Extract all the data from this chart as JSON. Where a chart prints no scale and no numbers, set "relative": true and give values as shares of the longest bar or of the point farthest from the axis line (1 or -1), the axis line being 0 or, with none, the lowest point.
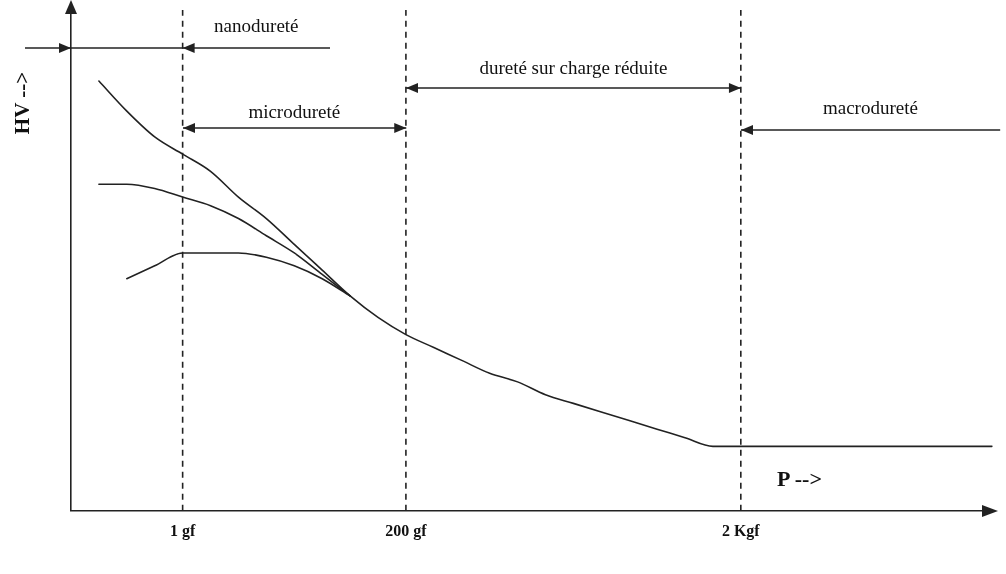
{
  "chart_data": {
    "type": "line",
    "relative": true,
    "ylabel": "HV -->",
    "xlabel": "P -->",
    "legend": false,
    "grid": false,
    "marker": "none",
    "categories": [
      null,
      null,
      null,
      null,
      "1 gf",
      null,
      null,
      null,
      null,
      null,
      null,
      null,
      "200 gf",
      null,
      null,
      null,
      null,
      null,
      null,
      null,
      null,
      null,
      null,
      null,
      "2 Kgf",
      null,
      null,
      null,
      null,
      null,
      null,
      null,
      null,
      null
    ],
    "series": [
      {
        "color": "#222222",
        "values": [
          null,
          1,
          0.93,
          0.87,
          0.83,
          0.79,
          0.73,
          0.68,
          0.62,
          0.56,
          0.5,
          0.45,
          0.41,
          0.38,
          0.35,
          0.32,
          0.3,
          0.27,
          0.25,
          0.23,
          0.21,
          0.19,
          0.17,
          0.15,
          0.15,
          0.15,
          0.15,
          0.15,
          0.15,
          0.15,
          0.15,
          0.15,
          0.15,
          0.15
        ]
      },
      {
        "color": "#222222",
        "values": [
          null,
          0.76,
          0.76,
          0.75,
          0.73,
          0.71,
          0.68,
          0.64,
          0.6,
          0.55,
          0.5,
          null,
          null,
          null,
          null,
          null,
          null,
          null,
          null,
          null,
          null,
          null,
          null,
          null,
          null,
          null,
          null,
          null,
          null,
          null,
          null,
          null,
          null,
          null
        ]
      },
      {
        "color": "#222222",
        "values": [
          null,
          null,
          0.54,
          0.57,
          0.6,
          0.6,
          0.6,
          0.59,
          0.57,
          0.54,
          0.5,
          null,
          null,
          null,
          null,
          null,
          null,
          null,
          null,
          null,
          null,
          null,
          null,
          null,
          null,
          null,
          null,
          null,
          null,
          null,
          null,
          null,
          null,
          null
        ]
      }
    ],
    "ref_lines": [
      {
        "axis": "x",
        "value": "1 gf",
        "line_style": "dashed",
        "color": "#222222"
      },
      {
        "axis": "x",
        "value": "200 gf",
        "line_style": "dashed",
        "color": "#222222"
      },
      {
        "axis": "x",
        "value": "2 Kgf",
        "line_style": "dashed",
        "color": "#222222"
      }
    ],
    "annotations": [
      "nanodureté",
      "microdureté",
      "dureté sur charge réduite",
      "macrodureté"
    ]
  }
}
